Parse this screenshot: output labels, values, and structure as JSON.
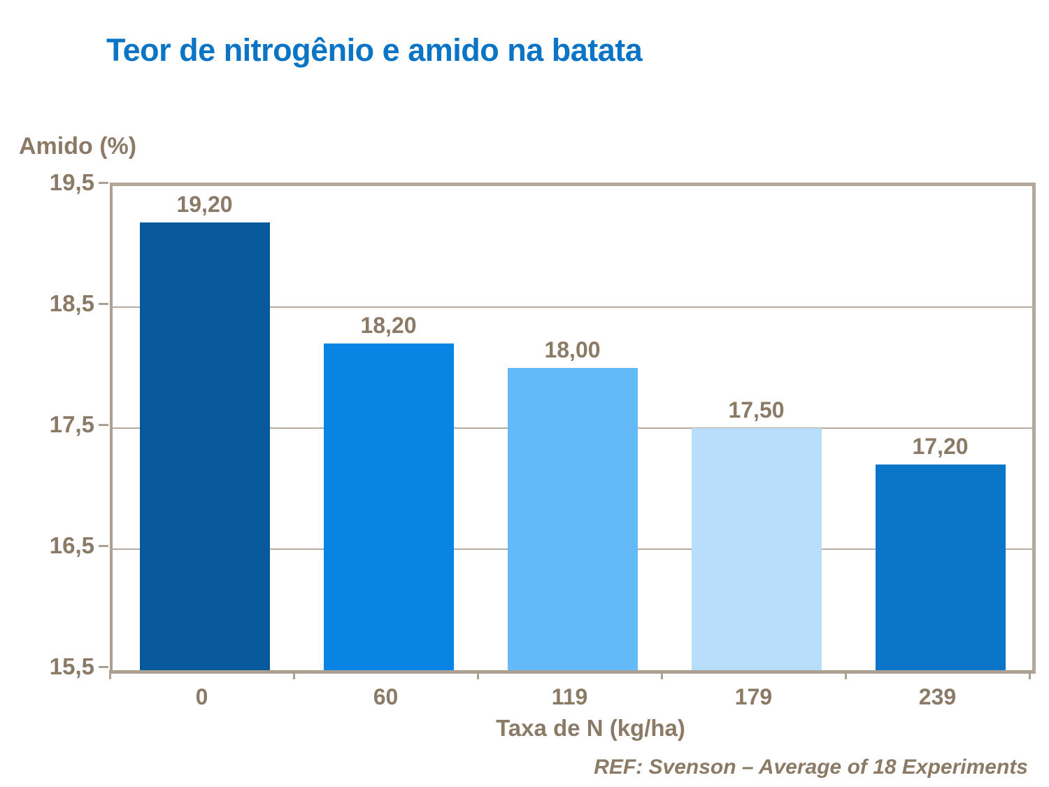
{
  "page": {
    "title": "Teor de nitrogênio e amido na batata",
    "footer": "REF: Svenson – Average of 18 Experiments"
  },
  "colors": {
    "title_blue": "#0b74c5",
    "text_taupe": "#8a7a66",
    "axis": "#aca093",
    "grid": "#b5ab9e",
    "plot_border": "#b2a89b"
  },
  "chart_data": {
    "type": "bar",
    "title": "Teor de nitrogênio e amido na batata",
    "categories": [
      "0",
      "60",
      "119",
      "179",
      "239"
    ],
    "values": [
      19.2,
      18.2,
      18.0,
      17.5,
      17.2
    ],
    "value_labels": [
      "19,20",
      "18,20",
      "18,00",
      "17,50",
      "17,20"
    ],
    "bar_colors": [
      "#07599c",
      "#0884e4",
      "#64baf9",
      "#b9defb",
      "#0b76c7"
    ],
    "xlabel": "Taxa de N (kg/ha)",
    "ylabel": "Amido (%)",
    "ylim": [
      15.5,
      19.5
    ],
    "yticks": [
      19.5,
      18.5,
      17.5,
      16.5,
      15.5
    ],
    "ytick_labels": [
      "19,5",
      "18,5",
      "17,5",
      "16,5",
      "15,5"
    ],
    "grid": "horizontal",
    "legend": "none",
    "source_note": "REF: Svenson – Average of 18 Experiments"
  }
}
